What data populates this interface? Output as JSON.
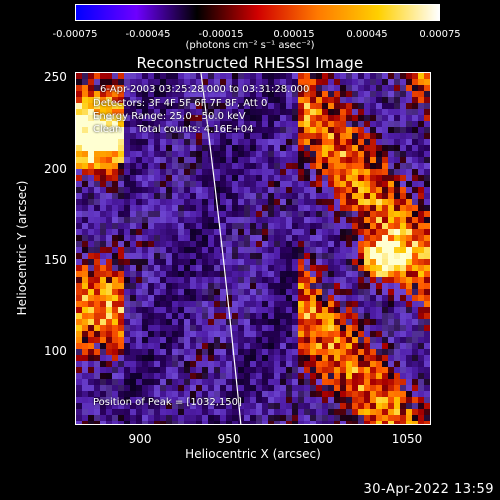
{
  "colorbar": {
    "tick_labels": [
      "-0.00075",
      "-0.00045",
      "-0.00015",
      "0.00015",
      "0.00045",
      "0.00075"
    ],
    "units_label": "(photons cm⁻² s⁻¹ asec⁻²)",
    "colors": [
      "#0000ff",
      "#6e00ff",
      "#000000",
      "#d00000",
      "#ff7a00",
      "#ffd000",
      "#ffffff"
    ]
  },
  "plot": {
    "title": "Reconstructed RHESSI Image",
    "xlabel": "Heliocentric X (arcsec)",
    "ylabel": "Heliocentric Y (arcsec)",
    "x_ticks": [
      "900",
      "950",
      "1000",
      "1050"
    ],
    "y_ticks": [
      "250",
      "200",
      "150",
      "100"
    ],
    "annotations": {
      "time_range": "6-Apr-2003 03:25:28.000 to 03:31:28.000",
      "detectors": "Detectors: 3F 4F 5F 6F 7F 8F, Att 0",
      "energy_range": "Energy Range: 25.0 - 50.0 keV",
      "method_counts": "Clean     Total counts: 4.16E+04",
      "peak_position": "Position of Peak = [1032,150]"
    }
  },
  "footer": {
    "timestamp": "30-Apr-2022 13:59"
  }
}
